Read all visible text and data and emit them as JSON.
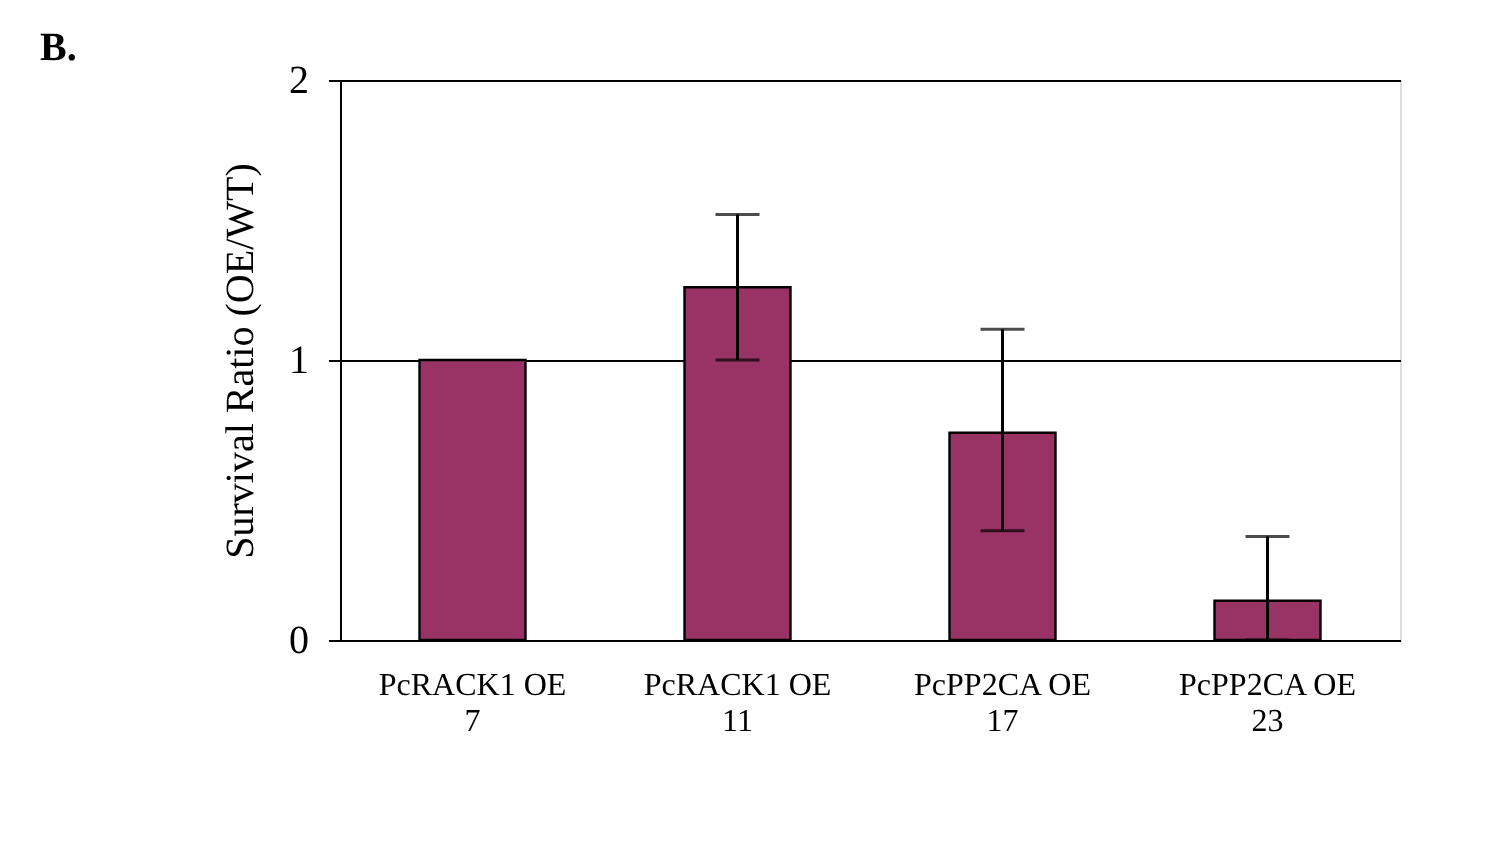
{
  "chart_data": {
    "type": "bar",
    "title": "B.",
    "ylabel": "Survival Ratio (OE/WT)",
    "categories": [
      "PcRACK1 OE\n7",
      "PcRACK1 OE\n11",
      "PcPP2CA OE\n17",
      "PcPP2CA OE\n23"
    ],
    "values": [
      1.0,
      1.26,
      0.74,
      0.14
    ],
    "errors": [
      null,
      [
        1.0,
        1.52
      ],
      [
        0.39,
        1.11
      ],
      [
        0,
        0.37
      ]
    ],
    "color": "#993366",
    "ylim": [
      0,
      2
    ],
    "yticks": [
      0,
      1,
      2
    ],
    "grid": "y"
  }
}
